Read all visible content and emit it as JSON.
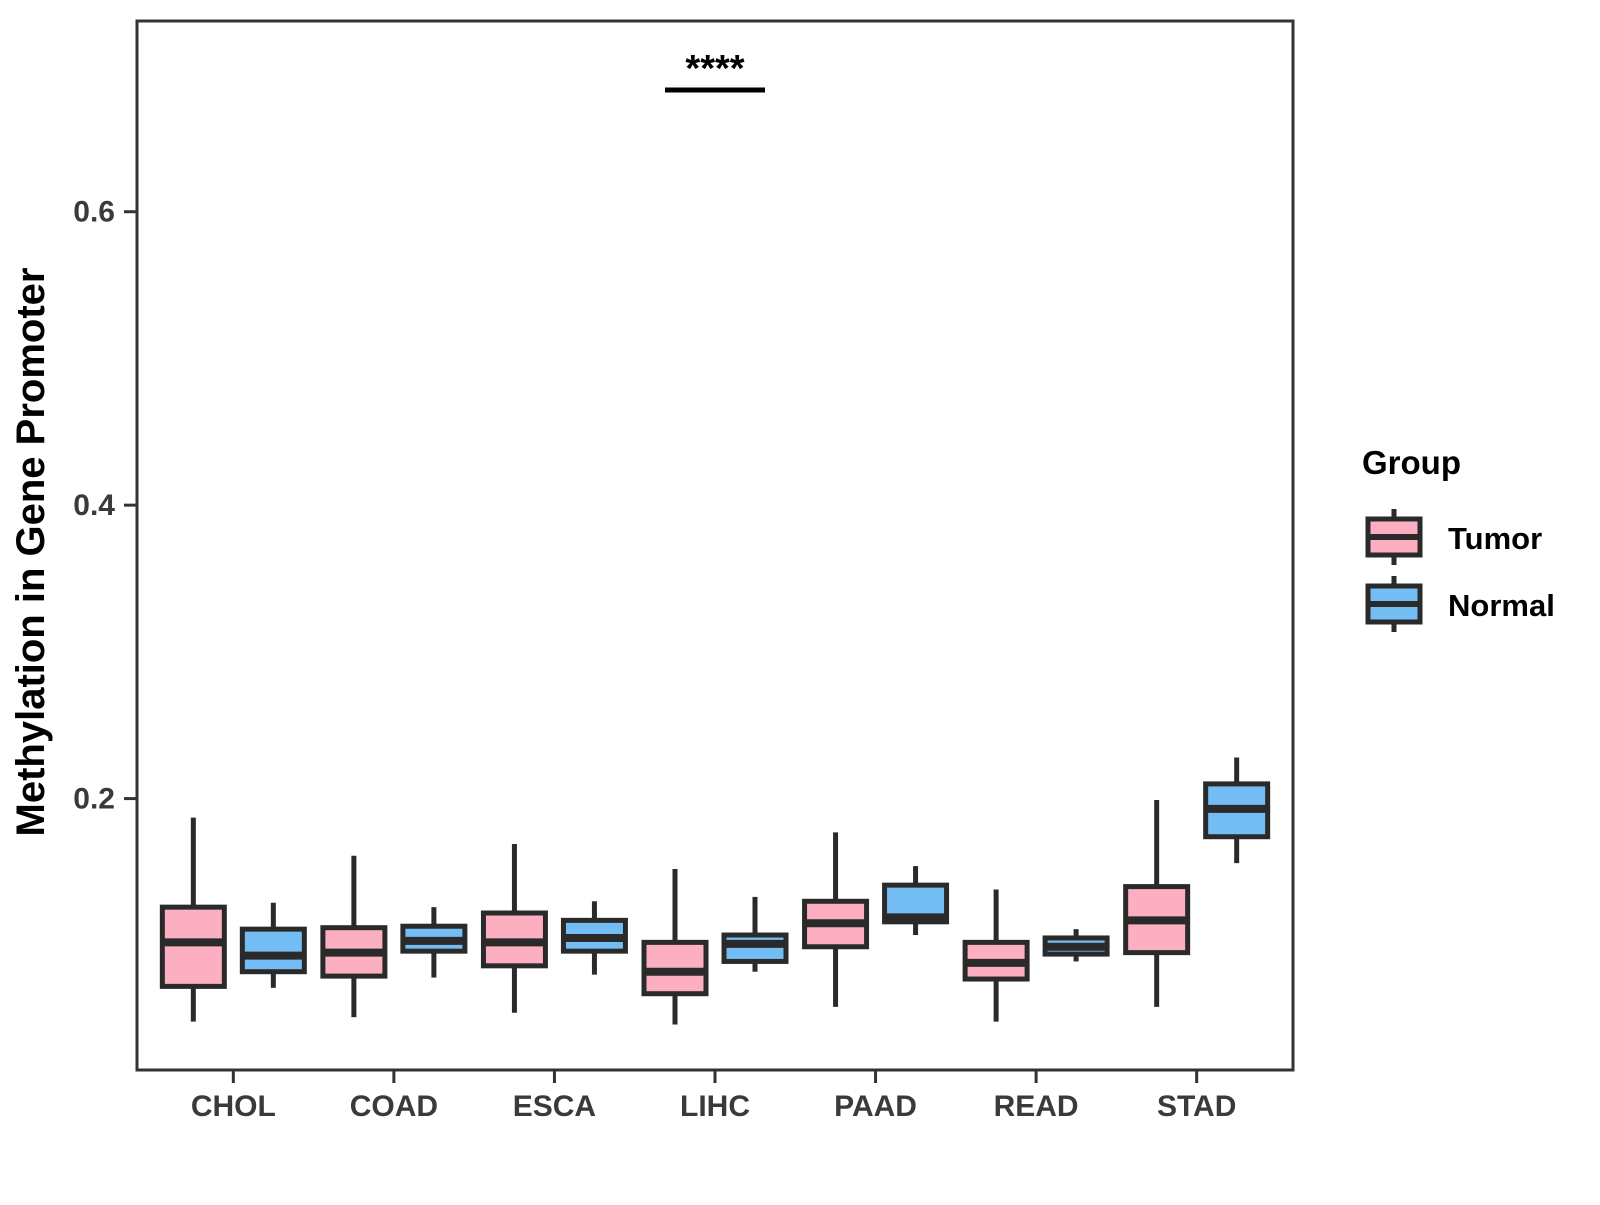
{
  "figure": {
    "background": "#FFFFFF"
  },
  "legend": {
    "title": "Group",
    "items": [
      {
        "label": "Tumor",
        "color": "#FBAFC1"
      },
      {
        "label": "Normal",
        "color": "#74BDF4"
      }
    ]
  },
  "style": {
    "box_stroke": "#2A2A2A",
    "panel_border": "#333333",
    "tick_color": "#333333",
    "annotation_color": "#000000"
  },
  "chart_data": {
    "type": "boxplot",
    "title": "",
    "xlabel": "",
    "ylabel": "Methylation in Gene Promoter",
    "categories": [
      "CHOL",
      "COAD",
      "ESCA",
      "LIHC",
      "PAAD",
      "READ",
      "STAD"
    ],
    "y_ticks": [
      0.2,
      0.4,
      0.6
    ],
    "ylim": [
      0.015,
      0.73
    ],
    "grid": false,
    "legend_position": "right",
    "series": [
      {
        "name": "Tumor",
        "color": "#FBAFC1",
        "boxes": [
          {
            "category": "CHOL",
            "whisker_low": 0.048,
            "q1": 0.072,
            "median": 0.102,
            "q3": 0.126,
            "whisker_high": 0.187
          },
          {
            "category": "COAD",
            "whisker_low": 0.051,
            "q1": 0.079,
            "median": 0.095,
            "q3": 0.112,
            "whisker_high": 0.161
          },
          {
            "category": "ESCA",
            "whisker_low": 0.054,
            "q1": 0.086,
            "median": 0.102,
            "q3": 0.122,
            "whisker_high": 0.169
          },
          {
            "category": "LIHC",
            "whisker_low": 0.046,
            "q1": 0.067,
            "median": 0.082,
            "q3": 0.102,
            "whisker_high": 0.152
          },
          {
            "category": "PAAD",
            "whisker_low": 0.058,
            "q1": 0.099,
            "median": 0.115,
            "q3": 0.13,
            "whisker_high": 0.177
          },
          {
            "category": "READ",
            "whisker_low": 0.048,
            "q1": 0.077,
            "median": 0.088,
            "q3": 0.102,
            "whisker_high": 0.138
          },
          {
            "category": "STAD",
            "whisker_low": 0.058,
            "q1": 0.095,
            "median": 0.117,
            "q3": 0.14,
            "whisker_high": 0.199
          }
        ]
      },
      {
        "name": "Normal",
        "color": "#74BDF4",
        "boxes": [
          {
            "category": "CHOL",
            "whisker_low": 0.071,
            "q1": 0.082,
            "median": 0.093,
            "q3": 0.111,
            "whisker_high": 0.129
          },
          {
            "category": "COAD",
            "whisker_low": 0.078,
            "q1": 0.096,
            "median": 0.103,
            "q3": 0.113,
            "whisker_high": 0.126
          },
          {
            "category": "ESCA",
            "whisker_low": 0.08,
            "q1": 0.096,
            "median": 0.105,
            "q3": 0.117,
            "whisker_high": 0.13
          },
          {
            "category": "LIHC",
            "whisker_low": 0.082,
            "q1": 0.089,
            "median": 0.101,
            "q3": 0.107,
            "whisker_high": 0.133
          },
          {
            "category": "PAAD",
            "whisker_low": 0.107,
            "q1": 0.116,
            "median": 0.119,
            "q3": 0.141,
            "whisker_high": 0.154
          },
          {
            "category": "READ",
            "whisker_low": 0.089,
            "q1": 0.094,
            "median": 0.099,
            "q3": 0.105,
            "whisker_high": 0.111
          },
          {
            "category": "STAD",
            "whisker_low": 0.156,
            "q1": 0.174,
            "median": 0.193,
            "q3": 0.21,
            "whisker_high": 0.228
          }
        ]
      }
    ],
    "annotation": {
      "label": "****",
      "category": "LIHC",
      "y": 0.683
    }
  }
}
